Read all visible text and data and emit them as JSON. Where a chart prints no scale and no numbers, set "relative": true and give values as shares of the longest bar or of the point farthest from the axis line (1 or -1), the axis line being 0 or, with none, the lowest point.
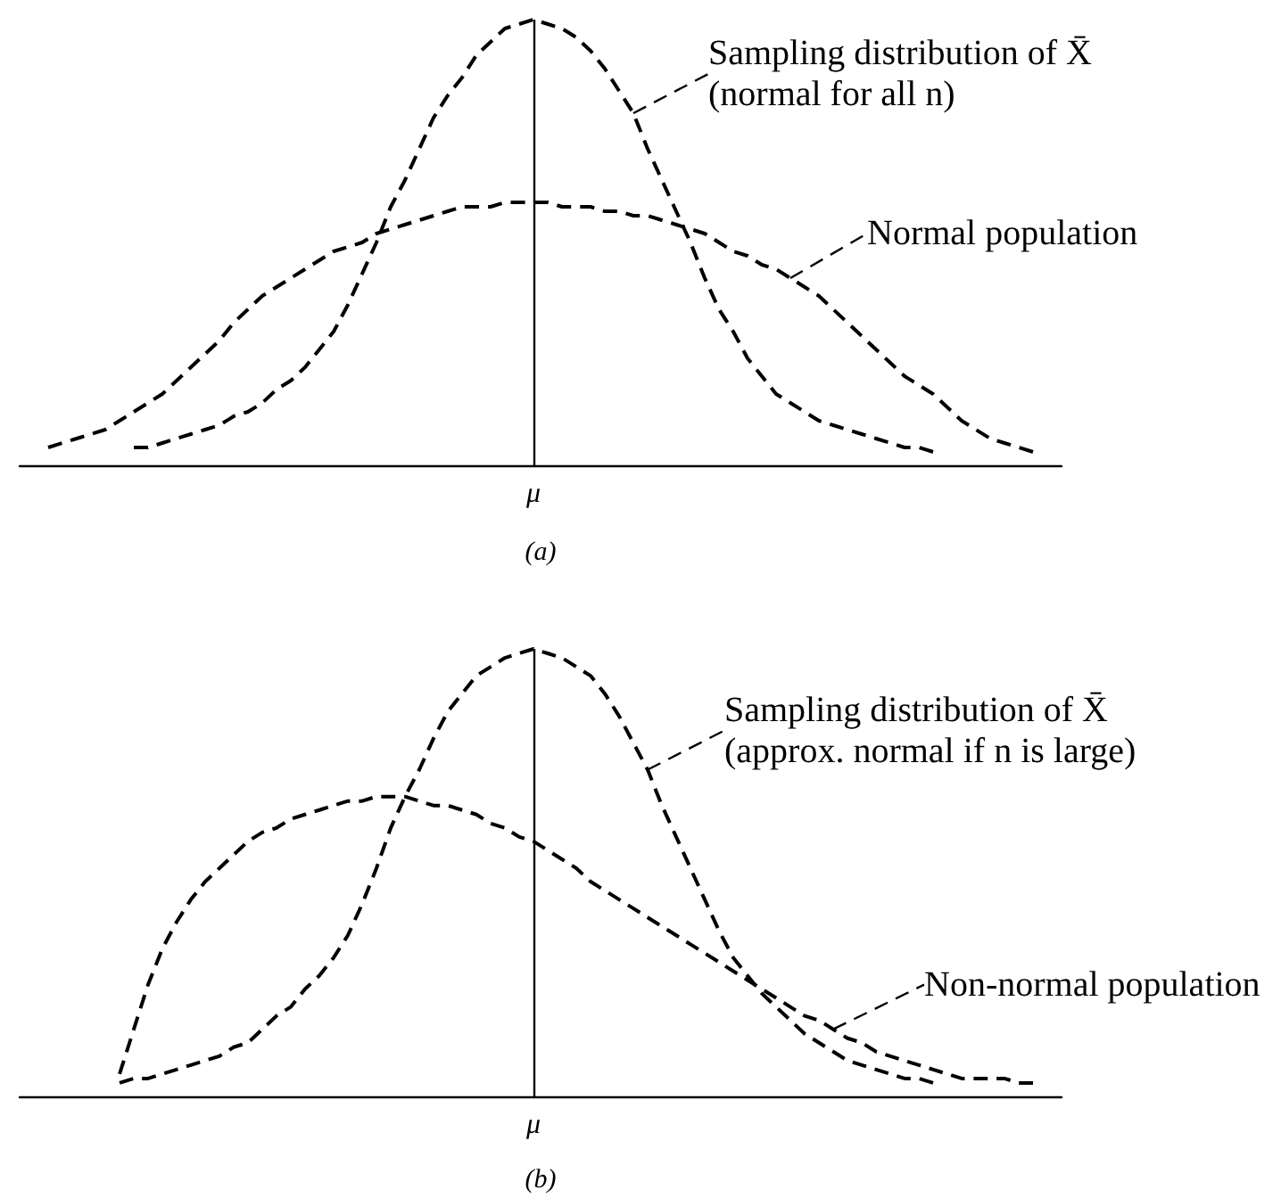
{
  "chart_data": [
    {
      "type": "line",
      "relative": true,
      "line_style": "dashed",
      "legend": "top right",
      "categories": [
        null,
        null,
        null,
        null,
        null,
        null,
        null,
        null,
        null,
        null,
        null,
        null,
        null,
        null,
        null,
        null,
        null,
        null,
        null,
        null,
        null,
        null,
        null,
        null,
        null,
        null,
        null,
        null,
        null,
        null,
        null,
        null,
        null,
        null,
        null,
        null,
        null,
        null,
        null,
        null,
        null,
        null,
        null,
        null,
        null,
        null,
        null,
        null,
        null,
        null,
        null,
        null,
        null,
        null,
        null,
        null,
        null,
        null,
        null,
        null,
        null,
        null,
        null,
        null,
        null,
        null,
        null,
        null,
        null,
        null,
        null,
        null,
        null,
        null
      ],
      "series": [
        {
          "name": "Sampling distribution of X̄\n(normal for all n)",
          "color": "#000000",
          "values": [
            null,
            null,
            null,
            null,
            null,
            null,
            null,
            null,
            0.04,
            0.04,
            0.05,
            0.06,
            0.07,
            0.08,
            0.09,
            0.11,
            0.12,
            0.14,
            0.17,
            0.19,
            0.22,
            0.26,
            0.3,
            0.36,
            0.43,
            0.5,
            0.58,
            0.64,
            0.71,
            0.78,
            0.83,
            0.87,
            0.92,
            0.95,
            0.98,
            0.99,
            1,
            0.99,
            0.98,
            0.96,
            0.93,
            0.89,
            0.84,
            0.79,
            0.71,
            0.64,
            0.57,
            0.5,
            0.42,
            0.35,
            0.3,
            0.24,
            0.2,
            0.16,
            0.14,
            0.12,
            0.1,
            0.09,
            0.08,
            0.07,
            0.06,
            0.05,
            0.04,
            0.04,
            0.03,
            null,
            null,
            null,
            null,
            null,
            null,
            null,
            null,
            null
          ]
        },
        {
          "name": "Normal population",
          "color": "#000000",
          "values": [
            null,
            null,
            0.04,
            0.05,
            0.06,
            0.07,
            0.08,
            0.1,
            0.12,
            0.14,
            0.16,
            0.19,
            0.22,
            0.25,
            0.28,
            0.32,
            0.35,
            0.38,
            0.4,
            0.42,
            0.44,
            0.46,
            0.48,
            0.49,
            0.5,
            0.52,
            0.53,
            0.54,
            0.55,
            0.56,
            0.57,
            0.58,
            0.58,
            0.58,
            0.59,
            0.59,
            0.59,
            0.59,
            0.58,
            0.58,
            0.58,
            0.57,
            0.57,
            0.56,
            0.56,
            0.55,
            0.54,
            0.53,
            0.52,
            0.5,
            0.48,
            0.47,
            0.45,
            0.44,
            0.42,
            0.4,
            0.38,
            0.35,
            0.32,
            0.29,
            0.26,
            0.23,
            0.2,
            0.18,
            0.16,
            0.13,
            0.1,
            0.08,
            0.06,
            0.05,
            0.04,
            0.03,
            null,
            null
          ]
        }
      ],
      "annotations": [
        "μ",
        "(a)"
      ]
    },
    {
      "type": "line",
      "relative": true,
      "line_style": "dashed",
      "legend": "right",
      "categories": [
        null,
        null,
        null,
        null,
        null,
        null,
        null,
        null,
        null,
        null,
        null,
        null,
        null,
        null,
        null,
        null,
        null,
        null,
        null,
        null,
        null,
        null,
        null,
        null,
        null,
        null,
        null,
        null,
        null,
        null,
        null,
        null,
        null,
        null,
        null,
        null,
        null,
        null,
        null,
        null,
        null,
        null,
        null,
        null,
        null,
        null,
        null,
        null,
        null,
        null,
        null,
        null,
        null,
        null,
        null,
        null,
        null,
        null,
        null,
        null,
        null,
        null,
        null,
        null,
        null,
        null,
        null,
        null,
        null,
        null,
        null,
        null,
        null,
        null
      ],
      "series": [
        {
          "name": "Sampling distribution of X̄\n(approx. normal if n is large)",
          "color": "#000000",
          "values": [
            null,
            null,
            null,
            null,
            null,
            null,
            null,
            0.03,
            0.04,
            0.04,
            0.05,
            0.06,
            0.07,
            0.08,
            0.09,
            0.11,
            0.12,
            0.15,
            0.18,
            0.2,
            0.24,
            0.27,
            0.31,
            0.36,
            0.43,
            0.51,
            0.6,
            0.67,
            0.73,
            0.8,
            0.86,
            0.9,
            0.94,
            0.96,
            0.98,
            0.99,
            1,
            0.99,
            0.98,
            0.96,
            0.94,
            0.9,
            0.85,
            0.79,
            0.73,
            0.65,
            0.58,
            0.51,
            0.44,
            0.37,
            0.31,
            0.27,
            0.23,
            0.2,
            0.17,
            0.14,
            0.12,
            0.1,
            0.08,
            0.07,
            0.06,
            0.05,
            0.04,
            0.04,
            0.03,
            null,
            null,
            null,
            null,
            null,
            null,
            null,
            null,
            null
          ]
        },
        {
          "name": "Non-normal population",
          "color": "#000000",
          "values": [
            null,
            null,
            null,
            null,
            null,
            null,
            null,
            0.05,
            0.15,
            0.25,
            0.33,
            0.39,
            0.44,
            0.48,
            0.51,
            0.54,
            0.57,
            0.59,
            0.6,
            0.62,
            0.63,
            0.64,
            0.65,
            0.66,
            0.66,
            0.67,
            0.67,
            0.67,
            0.66,
            0.65,
            0.65,
            0.64,
            0.63,
            0.61,
            0.6,
            0.58,
            0.57,
            0.55,
            0.53,
            0.51,
            0.48,
            0.46,
            0.44,
            0.42,
            0.4,
            0.38,
            0.36,
            0.34,
            0.32,
            0.3,
            0.28,
            0.26,
            0.24,
            0.22,
            0.2,
            0.18,
            0.17,
            0.15,
            0.13,
            0.12,
            0.1,
            0.09,
            0.08,
            0.07,
            0.06,
            0.05,
            0.04,
            0.04,
            0.04,
            0.04,
            0.03,
            0.03,
            null,
            null
          ]
        }
      ],
      "annotations": [
        "μ",
        "(b)"
      ]
    }
  ]
}
